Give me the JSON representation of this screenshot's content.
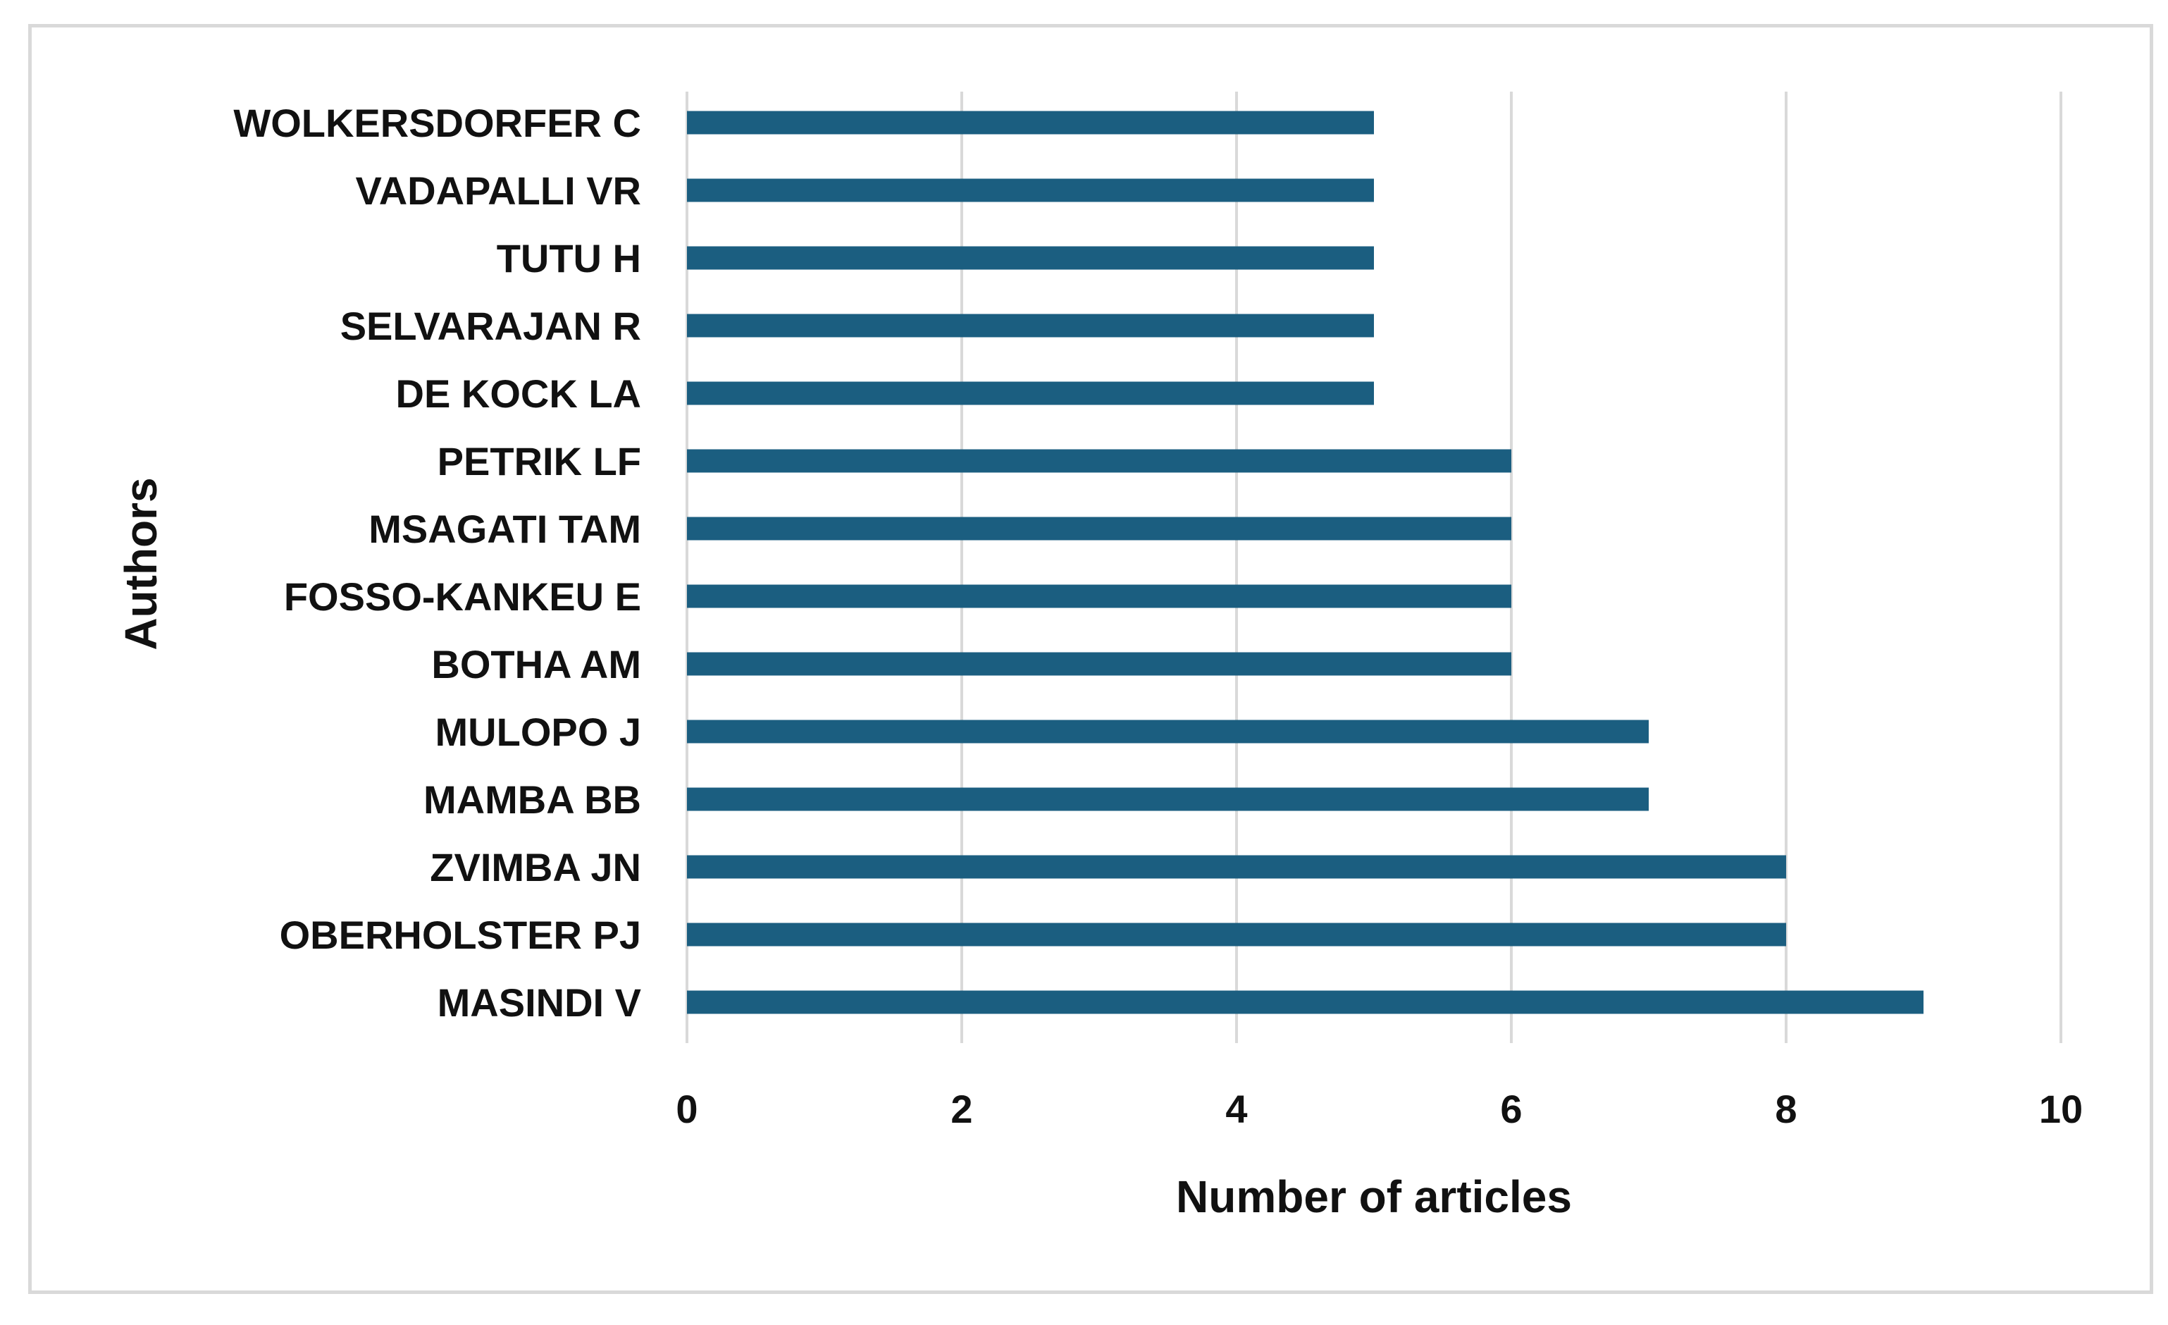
{
  "chart_data": {
    "type": "bar",
    "orientation": "horizontal",
    "categories": [
      "MASINDI V",
      "OBERHOLSTER PJ",
      "ZVIMBA JN",
      "MAMBA BB",
      "MULOPO J",
      "BOTHA AM",
      "FOSSO-KANKEU E",
      "MSAGATI TAM",
      "PETRIK LF",
      "DE KOCK LA",
      "SELVARAJAN R",
      "TUTU H",
      "VADAPALLI VR",
      "WOLKERSDORFER C"
    ],
    "values": [
      9,
      8,
      8,
      7,
      7,
      6,
      6,
      6,
      6,
      5,
      5,
      5,
      5,
      5
    ],
    "xlabel": "Number of articles",
    "ylabel": "Authors",
    "xlim": [
      0,
      10
    ],
    "xticks": [
      0,
      2,
      4,
      6,
      8,
      10
    ],
    "grid": "vertical",
    "legend": "none",
    "bar_color": "#1b5e80",
    "grid_color": "#d9d9d9",
    "frame_color": "#d9d9d9"
  }
}
